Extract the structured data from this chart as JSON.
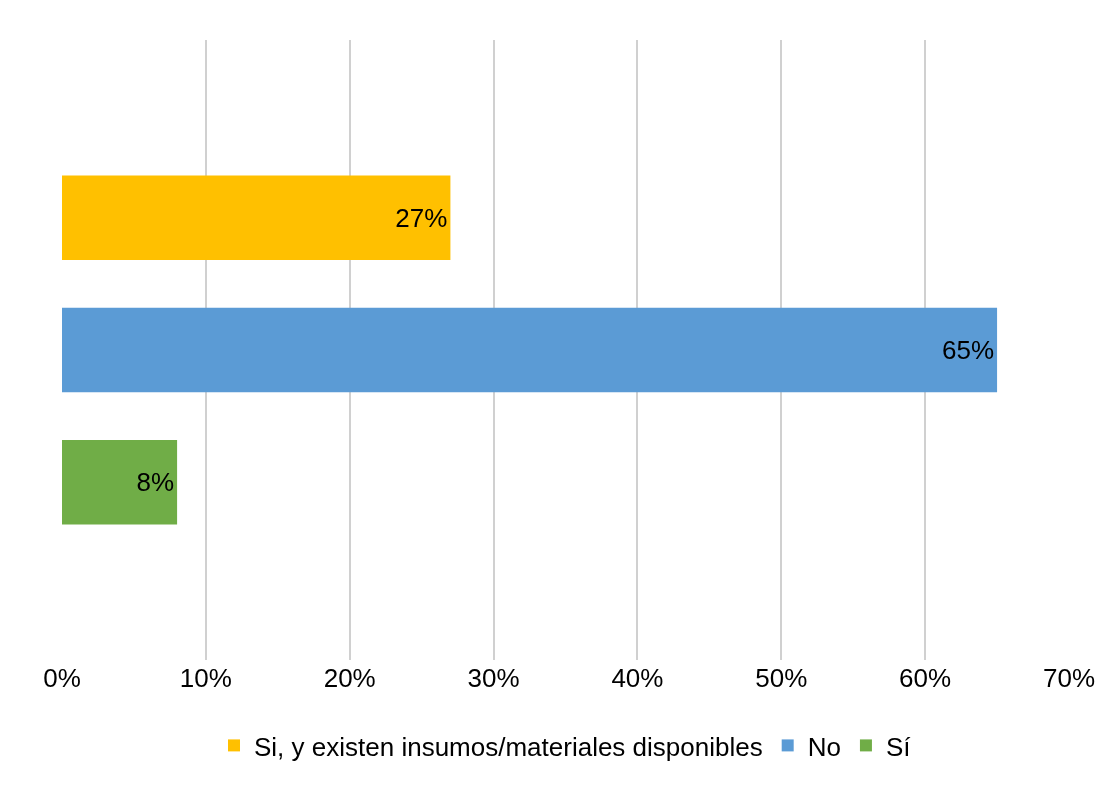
{
  "chart_data": {
    "type": "bar",
    "orientation": "horizontal",
    "categories": [
      null
    ],
    "series": [
      {
        "name": "Si, y existen insumos/materiales disponibles",
        "color": "#ffc000",
        "values": [
          27
        ],
        "value_labels": [
          "27%"
        ]
      },
      {
        "name": "No",
        "color": "#5b9bd5",
        "values": [
          65
        ],
        "value_labels": [
          "65%"
        ]
      },
      {
        "name": "Sí",
        "color": "#70ad47",
        "values": [
          8
        ],
        "value_labels": [
          "8%"
        ]
      }
    ],
    "xlim": [
      0,
      70
    ],
    "xticks": [
      {
        "value": 0,
        "label": "0%"
      },
      {
        "value": 10,
        "label": "10%"
      },
      {
        "value": 20,
        "label": "20%"
      },
      {
        "value": 30,
        "label": "30%"
      },
      {
        "value": 40,
        "label": "40%"
      },
      {
        "value": 50,
        "label": "50%"
      },
      {
        "value": 60,
        "label": "60%"
      },
      {
        "value": 70,
        "label": "70%"
      }
    ],
    "grid": "x",
    "legend": "bottom",
    "tick_labels": "x"
  }
}
